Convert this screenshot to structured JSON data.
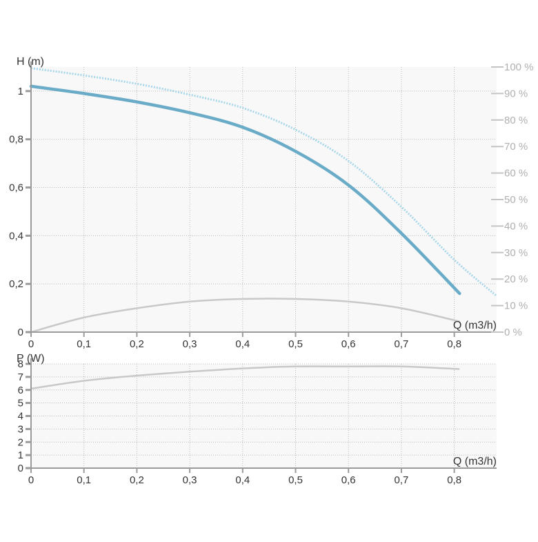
{
  "colors": {
    "background": "#ffffff",
    "plot_bg": "#f8f8f8",
    "grid": "#b8b8b8",
    "axis": "#9a9a9a",
    "axis_text": "#333333",
    "eff_axis_text": "#b0b0b0",
    "head_curve": "#6aacc8",
    "head_reference_curve": "#a8d6ea",
    "efficiency_curve": "#c8c8c8",
    "power_curve": "#c8c8c8"
  },
  "chart_data": [
    {
      "type": "line",
      "ylabel": "H (m)",
      "xlabel": "Q (m3/h)",
      "xlim": [
        0,
        0.88
      ],
      "ylim": [
        0,
        1.1
      ],
      "x_ticks": [
        "0",
        "0,1",
        "0,2",
        "0,3",
        "0,4",
        "0,5",
        "0,6",
        "0,7",
        "0,8"
      ],
      "y_ticks": [
        "0",
        "0,2",
        "0,4",
        "0,6",
        "0,8",
        "1"
      ],
      "y2_ticks": [
        "0 %",
        "10 %",
        "20 %",
        "30 %",
        "40 %",
        "50 %",
        "60 %",
        "70 %",
        "80 %",
        "90 %",
        "100 %"
      ],
      "y2lim": [
        0,
        100
      ],
      "grid": true,
      "series": [
        {
          "role": "head",
          "axis": "left",
          "x": [
            0,
            0.1,
            0.2,
            0.3,
            0.4,
            0.5,
            0.6,
            0.7,
            0.81
          ],
          "y": [
            1.02,
            0.99,
            0.955,
            0.91,
            0.85,
            0.75,
            0.61,
            0.41,
            0.16
          ]
        },
        {
          "role": "head_reference",
          "axis": "left",
          "x": [
            0,
            0.1,
            0.2,
            0.3,
            0.4,
            0.5,
            0.6,
            0.7,
            0.8,
            0.88
          ],
          "y": [
            1.095,
            1.065,
            1.03,
            0.985,
            0.93,
            0.84,
            0.71,
            0.52,
            0.3,
            0.15
          ]
        },
        {
          "role": "efficiency",
          "axis": "right",
          "x": [
            0,
            0.1,
            0.2,
            0.3,
            0.4,
            0.5,
            0.6,
            0.7,
            0.81
          ],
          "y": [
            0,
            5.5,
            9,
            11.5,
            12.5,
            12.5,
            11.5,
            9,
            4
          ]
        }
      ]
    },
    {
      "type": "line",
      "ylabel": "P (W)",
      "xlabel": "Q (m3/h)",
      "xlim": [
        0,
        0.88
      ],
      "ylim": [
        0,
        8
      ],
      "x_ticks": [
        "0",
        "0,1",
        "0,2",
        "0,3",
        "0,4",
        "0,5",
        "0,6",
        "0,7",
        "0,8"
      ],
      "y_ticks": [
        "0",
        "1",
        "2",
        "3",
        "4",
        "5",
        "6",
        "7",
        "8"
      ],
      "grid": true,
      "series": [
        {
          "role": "power",
          "axis": "left",
          "x": [
            0,
            0.1,
            0.2,
            0.3,
            0.4,
            0.5,
            0.6,
            0.7,
            0.81
          ],
          "y": [
            6.1,
            6.7,
            7.1,
            7.4,
            7.65,
            7.8,
            7.8,
            7.8,
            7.6
          ]
        }
      ]
    }
  ]
}
